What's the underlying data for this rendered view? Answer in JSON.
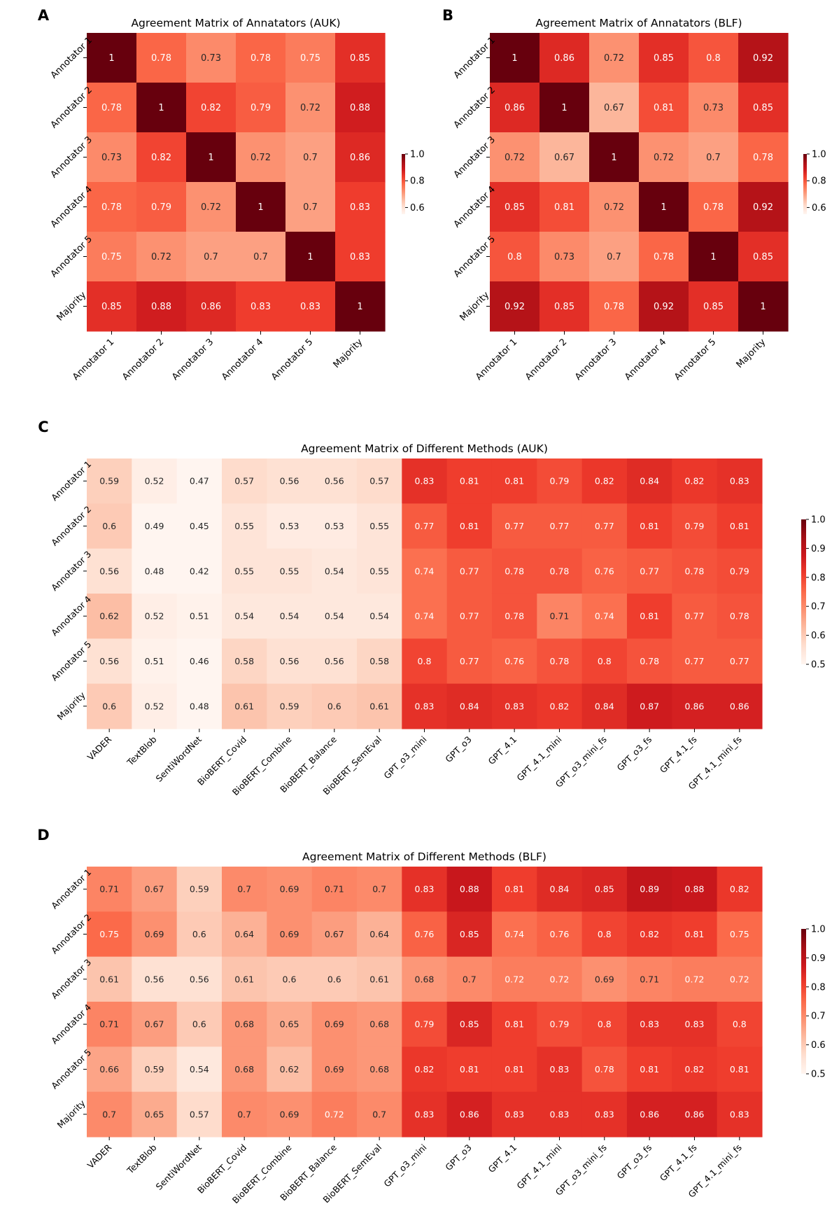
{
  "chart_data": [
    {
      "panel": "A",
      "type": "heatmap",
      "title": "Agreement Matrix of Annatators (AUK)",
      "rows": [
        "Annotator 1",
        "Annotator 2",
        "Annotator 3",
        "Annotator 4",
        "Annotator 5",
        "Majority"
      ],
      "columns": [
        "Annotator 1",
        "Annotator 2",
        "Annotator 3",
        "Annotator 4",
        "Annotator 5",
        "Majority"
      ],
      "values": [
        [
          1,
          0.78,
          0.73,
          0.78,
          0.75,
          0.85
        ],
        [
          0.78,
          1,
          0.82,
          0.79,
          0.72,
          0.88
        ],
        [
          0.73,
          0.82,
          1,
          0.72,
          0.7,
          0.86
        ],
        [
          0.78,
          0.79,
          0.72,
          1,
          0.7,
          0.83
        ],
        [
          0.75,
          0.72,
          0.7,
          0.7,
          1,
          0.83
        ],
        [
          0.85,
          0.88,
          0.86,
          0.83,
          0.83,
          1
        ]
      ],
      "colorbar": {
        "range": [
          0.55,
          1.0
        ],
        "ticks": [
          "1.0",
          "0.8",
          "0.6"
        ],
        "tick_values": [
          1.0,
          0.8,
          0.6
        ]
      },
      "colormap": "Reds"
    },
    {
      "panel": "B",
      "type": "heatmap",
      "title": "Agreement Matrix of Annatators (BLF)",
      "rows": [
        "Annotator 1",
        "Annotator 2",
        "Annotator 3",
        "Annotator 4",
        "Annotator 5",
        "Majority"
      ],
      "columns": [
        "Annotator 1",
        "Annotator 2",
        "Annotator 3",
        "Annotator 4",
        "Annotator 5",
        "Majority"
      ],
      "values": [
        [
          1,
          0.86,
          0.72,
          0.85,
          0.8,
          0.92
        ],
        [
          0.86,
          1,
          0.67,
          0.81,
          0.73,
          0.85
        ],
        [
          0.72,
          0.67,
          1,
          0.72,
          0.7,
          0.78
        ],
        [
          0.85,
          0.81,
          0.72,
          1,
          0.78,
          0.92
        ],
        [
          0.8,
          0.73,
          0.7,
          0.78,
          1,
          0.85
        ],
        [
          0.92,
          0.85,
          0.78,
          0.92,
          0.85,
          1
        ]
      ],
      "colorbar": {
        "range": [
          0.55,
          1.0
        ],
        "ticks": [
          "1.0",
          "0.8",
          "0.6"
        ],
        "tick_values": [
          1.0,
          0.8,
          0.6
        ]
      },
      "colormap": "Reds"
    },
    {
      "panel": "C",
      "type": "heatmap",
      "title": "Agreement Matrix of Different Methods (AUK)",
      "rows": [
        "Annotator 1",
        "Annotator 2",
        "Annotator 3",
        "Annotator 4",
        "Annotator 5",
        "Majority"
      ],
      "columns": [
        "VADER",
        "TextBlob",
        "SentiWordNet",
        "BioBERT_Covid",
        "BioBERT_Combine",
        "BioBERT_Balance",
        "BioBERT_SemEval",
        "GPT_o3_mini",
        "GPT_o3",
        "GPT_4.1",
        "GPT_4.1_mini",
        "GPT_o3_mini_fs",
        "GPT_o3_fs",
        "GPT_4.1_fs",
        "GPT_4.1_mini_fs"
      ],
      "values": [
        [
          0.59,
          0.52,
          0.47,
          0.57,
          0.56,
          0.56,
          0.57,
          0.83,
          0.81,
          0.81,
          0.79,
          0.82,
          0.84,
          0.82,
          0.83
        ],
        [
          0.6,
          0.49,
          0.45,
          0.55,
          0.53,
          0.53,
          0.55,
          0.77,
          0.81,
          0.77,
          0.77,
          0.77,
          0.81,
          0.79,
          0.81
        ],
        [
          0.56,
          0.48,
          0.42,
          0.55,
          0.55,
          0.54,
          0.55,
          0.74,
          0.77,
          0.78,
          0.78,
          0.76,
          0.77,
          0.78,
          0.79
        ],
        [
          0.62,
          0.52,
          0.51,
          0.54,
          0.54,
          0.54,
          0.54,
          0.74,
          0.77,
          0.78,
          0.71,
          0.74,
          0.81,
          0.77,
          0.78
        ],
        [
          0.56,
          0.51,
          0.46,
          0.58,
          0.56,
          0.56,
          0.58,
          0.8,
          0.77,
          0.76,
          0.78,
          0.8,
          0.78,
          0.77,
          0.77
        ],
        [
          0.6,
          0.52,
          0.48,
          0.61,
          0.59,
          0.6,
          0.61,
          0.83,
          0.84,
          0.83,
          0.82,
          0.84,
          0.87,
          0.86,
          0.86
        ]
      ],
      "colorbar": {
        "range": [
          0.5,
          1.0
        ],
        "ticks": [
          "1.0",
          "0.9",
          "0.8",
          "0.7",
          "0.6",
          "0.5"
        ],
        "tick_values": [
          1.0,
          0.9,
          0.8,
          0.7,
          0.6,
          0.5
        ]
      },
      "colormap": "Reds"
    },
    {
      "panel": "D",
      "type": "heatmap",
      "title": "Agreement Matrix of Different Methods (BLF)",
      "rows": [
        "Annotator 1",
        "Annotator 2",
        "Annotator 3",
        "Annotator 4",
        "Annotator 5",
        "Majority"
      ],
      "columns": [
        "VADER",
        "TextBlob",
        "SentiWordNet",
        "BioBERT_Covid",
        "BioBERT_Combine",
        "BioBERT_Balance",
        "BioBERT_SemEval",
        "GPT_o3_mini",
        "GPT_o3",
        "GPT_4.1",
        "GPT_4.1_mini",
        "GPT_o3_mini_fs",
        "GPT_o3_fs",
        "GPT_4.1_fs",
        "GPT_4.1_mini_fs"
      ],
      "values": [
        [
          0.71,
          0.67,
          0.59,
          0.7,
          0.69,
          0.71,
          0.7,
          0.83,
          0.88,
          0.81,
          0.84,
          0.85,
          0.89,
          0.88,
          0.82
        ],
        [
          0.75,
          0.69,
          0.6,
          0.64,
          0.69,
          0.67,
          0.64,
          0.76,
          0.85,
          0.74,
          0.76,
          0.8,
          0.82,
          0.81,
          0.75
        ],
        [
          0.61,
          0.56,
          0.56,
          0.61,
          0.6,
          0.6,
          0.61,
          0.68,
          0.7,
          0.72,
          0.72,
          0.69,
          0.71,
          0.72,
          0.72
        ],
        [
          0.71,
          0.67,
          0.6,
          0.68,
          0.65,
          0.69,
          0.68,
          0.79,
          0.85,
          0.81,
          0.79,
          0.8,
          0.83,
          0.83,
          0.8
        ],
        [
          0.66,
          0.59,
          0.54,
          0.68,
          0.62,
          0.69,
          0.68,
          0.82,
          0.81,
          0.81,
          0.83,
          0.78,
          0.81,
          0.82,
          0.81
        ],
        [
          0.7,
          0.65,
          0.57,
          0.7,
          0.69,
          0.72,
          0.7,
          0.83,
          0.86,
          0.83,
          0.83,
          0.83,
          0.86,
          0.86,
          0.83
        ]
      ],
      "colorbar": {
        "range": [
          0.5,
          1.0
        ],
        "ticks": [
          "1.0",
          "0.9",
          "0.8",
          "0.7",
          "0.6",
          "0.5"
        ],
        "tick_values": [
          1.0,
          0.9,
          0.8,
          0.7,
          0.6,
          0.5
        ]
      },
      "colormap": "Reds"
    }
  ]
}
